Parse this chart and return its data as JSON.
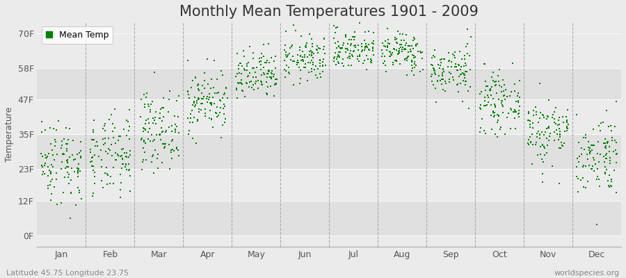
{
  "title": "Monthly Mean Temperatures 1901 - 2009",
  "ylabel": "Temperature",
  "xlabel_labels": [
    "Jan",
    "Feb",
    "Mar",
    "Apr",
    "May",
    "Jun",
    "Jul",
    "Aug",
    "Sep",
    "Oct",
    "Nov",
    "Dec"
  ],
  "ytick_labels": [
    "0F",
    "12F",
    "23F",
    "35F",
    "47F",
    "58F",
    "70F"
  ],
  "ytick_values": [
    0,
    12,
    23,
    35,
    47,
    58,
    70
  ],
  "ylim": [
    -4,
    74
  ],
  "dot_color": "#008000",
  "dot_size": 3.5,
  "legend_label": "Mean Temp",
  "subtitle_left": "Latitude 45.75 Longitude 23.75",
  "subtitle_right": "worldspecies.org",
  "bg_color": "#ebebeb",
  "plot_bg_color": "#ebebeb",
  "title_fontsize": 15,
  "axis_fontsize": 9,
  "tick_fontsize": 9,
  "years": 109,
  "monthly_means_F": [
    25.5,
    27.0,
    36.5,
    46.5,
    55.0,
    61.0,
    64.5,
    63.5,
    57.0,
    46.0,
    36.0,
    28.0
  ],
  "monthly_stds_F": [
    7.5,
    7.0,
    6.5,
    5.5,
    4.5,
    4.0,
    3.5,
    3.5,
    4.5,
    5.0,
    6.0,
    7.0
  ],
  "seed": 42,
  "band_colors": [
    "#e0e0e0",
    "#ebebeb",
    "#e0e0e0",
    "#ebebeb",
    "#e0e0e0",
    "#ebebeb"
  ]
}
